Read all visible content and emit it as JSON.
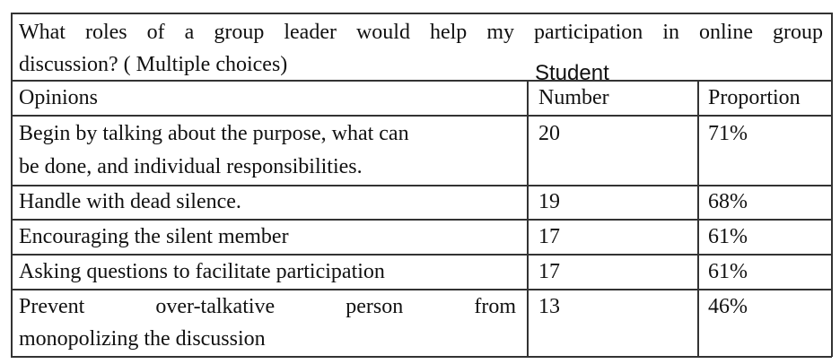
{
  "table": {
    "title_line1": "What roles of a group leader would help my participation in online group",
    "title_line2": "discussion? ( Multiple choices)",
    "headers": {
      "opinions": "Opinions",
      "number_top": "Student",
      "number": "Number",
      "proportion": "Proportion"
    },
    "rows": [
      {
        "opinion_line1": "Begin by talking about the purpose, what can",
        "opinion_line2": "be done, and individual responsibilities.",
        "number": "20",
        "proportion": "71%"
      },
      {
        "opinion_line1": "Handle with dead silence.",
        "number": "19",
        "proportion": "68%"
      },
      {
        "opinion_line1": "Encouraging the silent member",
        "number": "17",
        "proportion": "61%"
      },
      {
        "opinion_line1": "Asking questions to facilitate participation",
        "number": "17",
        "proportion": "61%"
      },
      {
        "opinion_line1": "Prevent over-talkative person from",
        "opinion_line2": "monopolizing the discussion",
        "number": "13",
        "proportion": "46%"
      }
    ]
  }
}
